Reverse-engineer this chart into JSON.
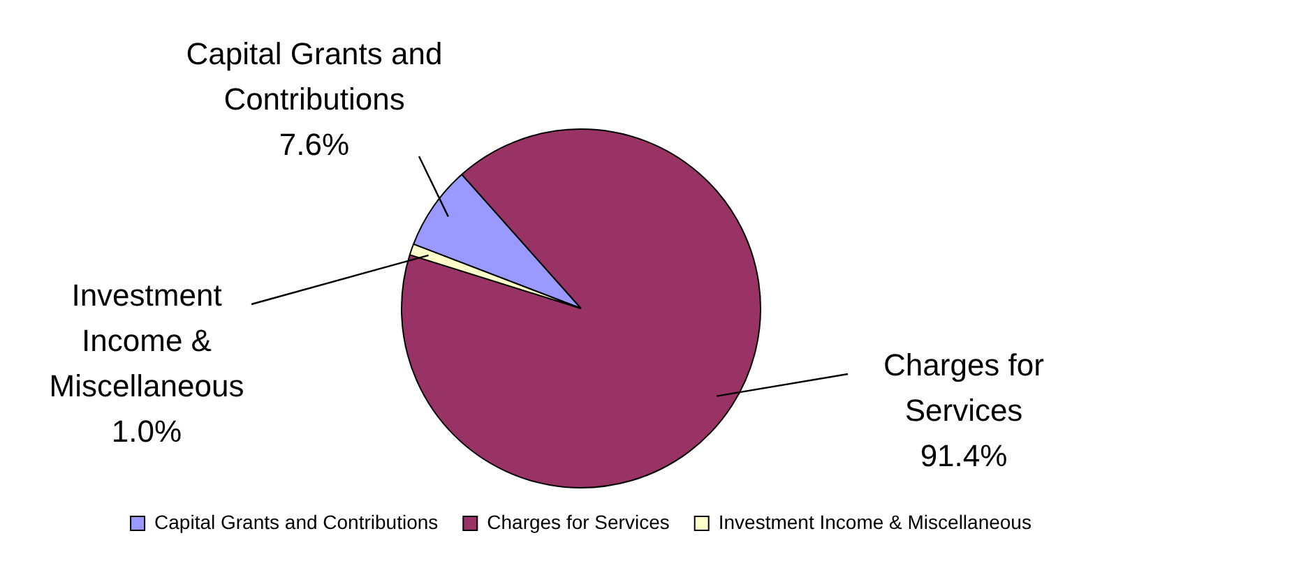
{
  "chart_data": {
    "type": "pie",
    "categories": [
      "Capital Grants and Contributions",
      "Charges for Services",
      "Investment Income & Miscellaneous"
    ],
    "values": [
      7.6,
      91.4,
      1.0
    ],
    "colors": [
      "#9999ff",
      "#993366",
      "#ffffcc"
    ],
    "value_labels": [
      "7.6%",
      "91.4%",
      "1.0%"
    ],
    "legend": "bottom"
  }
}
